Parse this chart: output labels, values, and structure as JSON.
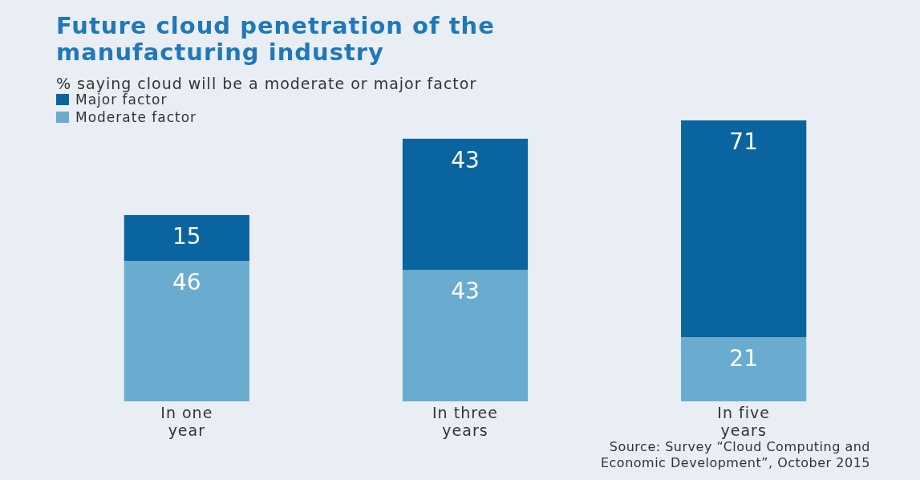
{
  "chart_data": {
    "type": "bar",
    "title": "Future cloud penetration of the manufacturing industry",
    "subtitle": "% saying cloud will be a moderate or major factor",
    "categories": [
      "In one year",
      "In three years",
      "In five years"
    ],
    "stacked": true,
    "data_labels": true,
    "legend": "top left",
    "series": [
      {
        "name": "Moderate factor",
        "color": "#6aaccf",
        "values": [
          46,
          43,
          21
        ]
      },
      {
        "name": "Major factor",
        "color": "#0a64a0",
        "values": [
          15,
          43,
          71
        ]
      }
    ],
    "annotations": [
      "Source: Survey “Cloud Computing and Economic Development”, October 2015"
    ]
  }
}
